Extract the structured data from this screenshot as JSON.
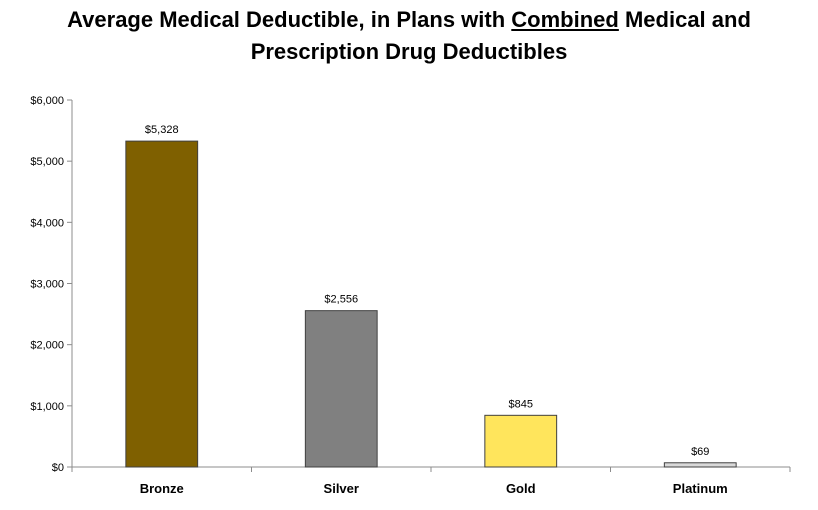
{
  "chart_data": {
    "type": "bar",
    "title": {
      "line1_before": "Average Medical Deductible, in Plans with ",
      "line1_emphasis": "Combined",
      "line1_after": " Medical and",
      "line2": "Prescription Drug Deductibles"
    },
    "categories": [
      "Bronze",
      "Silver",
      "Gold",
      "Platinum"
    ],
    "values": [
      5328,
      2556,
      845,
      69
    ],
    "data_labels": [
      "$5,328",
      "$2,556",
      "$845",
      "$69"
    ],
    "colors": [
      "#7f6000",
      "#808080",
      "#ffe55c",
      "#d9d9d9"
    ],
    "y_ticks": [
      0,
      1000,
      2000,
      3000,
      4000,
      5000,
      6000
    ],
    "y_tick_labels": [
      "$0",
      "$1,000",
      "$2,000",
      "$3,000",
      "$4,000",
      "$5,000",
      "$6,000"
    ],
    "ylim": [
      0,
      6000
    ],
    "xlabel": "",
    "ylabel": "",
    "grid": false,
    "legend": "none"
  }
}
